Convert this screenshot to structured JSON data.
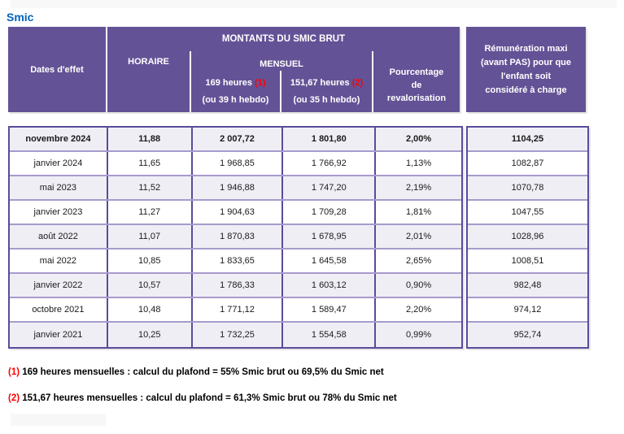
{
  "page": {
    "title": "Smic"
  },
  "colors": {
    "purple": "#645296",
    "stripe": "#f0eef5",
    "border_dark": "#5b4b9b",
    "border_light": "#a79bcc",
    "title_blue": "#0063be",
    "red": "#ff0000"
  },
  "header": {
    "dates_col": "Dates d'effet",
    "montants": "MONTANTS DU SMIC BRUT",
    "horaire": "HORAIRE",
    "mensuel": "MENSUEL",
    "h169_label": "169 heures",
    "h169_ref": "(1)",
    "h169_sub": "(ou 39 h hebdo)",
    "h151_label": "151,67 heures",
    "h151_ref": "(2)",
    "h151_sub": "(ou 35 h hebdo)",
    "pourcentage": "Pourcentage\nde\nrevalorisation",
    "remuneration": "Rémunération maxi\n(avant PAS) pour que\nl'enfant soit\nconsidéré à charge"
  },
  "chart_data": {
    "type": "table",
    "title": "Smic",
    "columns": [
      "Dates d'effet",
      "HORAIRE",
      "MENSUEL 169 heures (ou 39 h hebdo)",
      "MENSUEL 151,67 heures (ou 35 h hebdo)",
      "Pourcentage de revalorisation",
      "Rémunération maxi (avant PAS) pour que l'enfant soit considéré à charge"
    ]
  },
  "table": {
    "rows": [
      {
        "date": "novembre 2024",
        "horaire": "11,88",
        "mensuel_169": "2 007,72",
        "mensuel_151": "1 801,80",
        "pourcentage": "2,00%",
        "remuneration": "1104,25",
        "bold": true
      },
      {
        "date": "janvier 2024",
        "horaire": "11,65",
        "mensuel_169": "1 968,85",
        "mensuel_151": "1 766,92",
        "pourcentage": "1,13%",
        "remuneration": "1082,87",
        "bold": false
      },
      {
        "date": "mai 2023",
        "horaire": "11,52",
        "mensuel_169": "1 946,88",
        "mensuel_151": "1 747,20",
        "pourcentage": "2,19%",
        "remuneration": "1070,78",
        "bold": false
      },
      {
        "date": "janvier 2023",
        "horaire": "11,27",
        "mensuel_169": "1 904,63",
        "mensuel_151": "1 709,28",
        "pourcentage": "1,81%",
        "remuneration": "1047,55",
        "bold": false
      },
      {
        "date": "août 2022",
        "horaire": "11,07",
        "mensuel_169": "1 870,83",
        "mensuel_151": "1 678,95",
        "pourcentage": "2,01%",
        "remuneration": "1028,96",
        "bold": false
      },
      {
        "date": "mai 2022",
        "horaire": "10,85",
        "mensuel_169": "1 833,65",
        "mensuel_151": "1 645,58",
        "pourcentage": "2,65%",
        "remuneration": "1008,51",
        "bold": false
      },
      {
        "date": "janvier 2022",
        "horaire": "10,57",
        "mensuel_169": "1 786,33",
        "mensuel_151": "1 603,12",
        "pourcentage": "0,90%",
        "remuneration": "982,48",
        "bold": false
      },
      {
        "date": "octobre 2021",
        "horaire": "10,48",
        "mensuel_169": "1 771,12",
        "mensuel_151": "1 589,47",
        "pourcentage": "2,20%",
        "remuneration": "974,12",
        "bold": false
      },
      {
        "date": "janvier 2021",
        "horaire": "10,25",
        "mensuel_169": "1 732,25",
        "mensuel_151": "1 554,58",
        "pourcentage": "0,99%",
        "remuneration": "952,74",
        "bold": false
      }
    ]
  },
  "footnotes": [
    {
      "ref": "(1)",
      "text": "169 heures mensuelles : calcul du plafond = 55% Smic brut ou 69,5% du Smic net"
    },
    {
      "ref": "(2)",
      "text": "151,67 heures mensuelles : calcul du plafond = 61,3% Smic brut ou 78% du Smic net"
    }
  ]
}
